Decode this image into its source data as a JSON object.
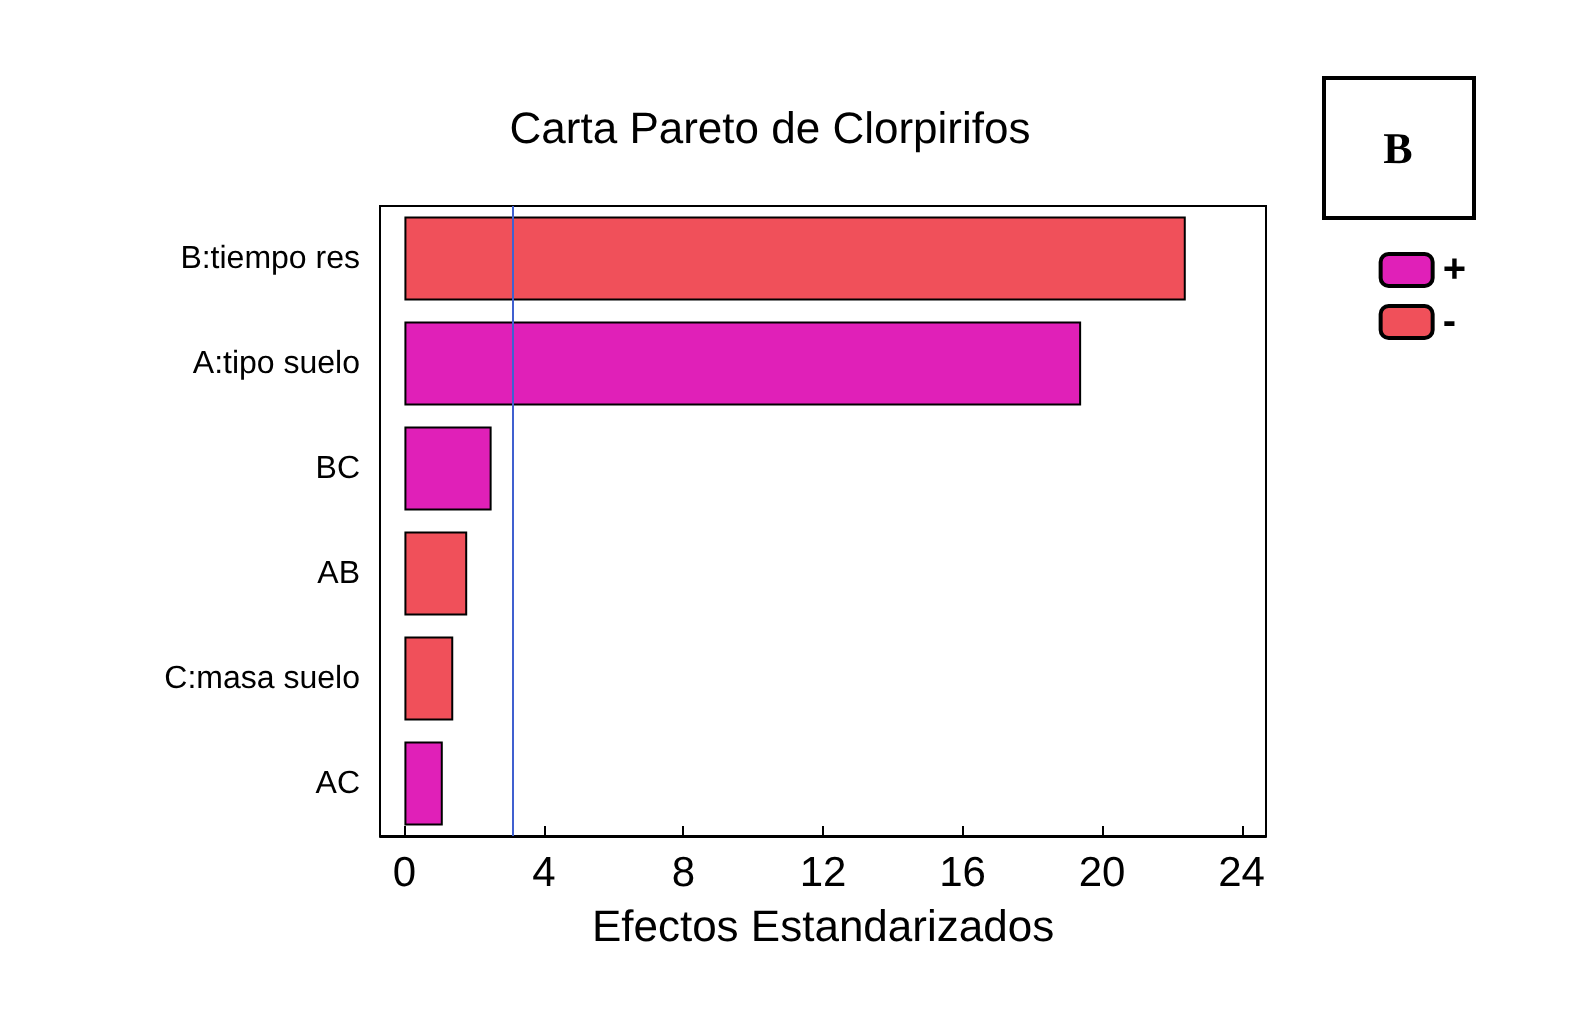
{
  "chart_data": {
    "type": "bar",
    "orientation": "horizontal",
    "stacked": true,
    "title": "Carta Pareto de Clorpirifos",
    "xlabel": "Efectos Estandarizados",
    "categories": [
      "B:tiempo res",
      "A:tipo suelo",
      "BC",
      "AB",
      "C:masa suelo",
      "AC"
    ],
    "series": [
      {
        "name": "+",
        "color": "#e020b8",
        "values": [
          null,
          19.4,
          2.5,
          null,
          null,
          1.1
        ]
      },
      {
        "name": "-",
        "color": "#f0505a",
        "values": [
          22.4,
          null,
          null,
          1.8,
          1.4,
          null
        ]
      }
    ],
    "xlim": [
      -0.7,
      24.7
    ],
    "xticks": [
      0,
      4,
      8,
      12,
      16,
      20,
      24
    ],
    "grid": false,
    "legend": "right",
    "ref_lines": [
      {
        "axis": "x",
        "value": 3.1,
        "color": "#4060d0"
      }
    ],
    "annotations": [
      "B"
    ]
  }
}
